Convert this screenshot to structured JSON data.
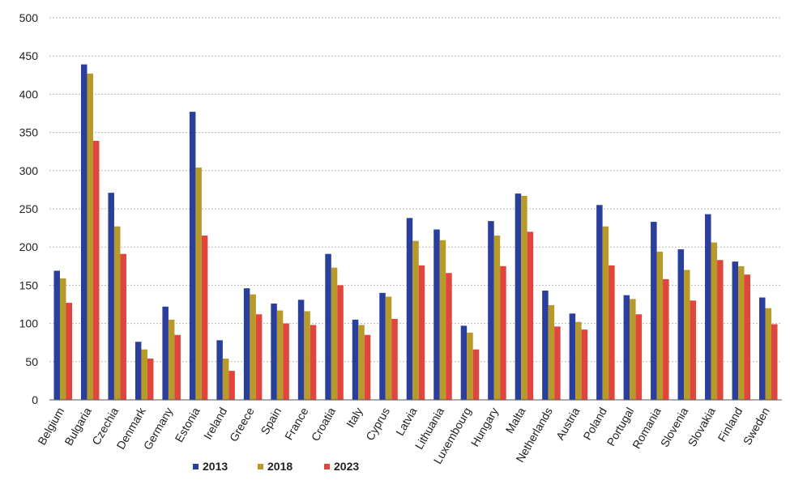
{
  "chart_data": {
    "type": "bar",
    "title": "",
    "xlabel": "",
    "ylabel": "",
    "ylim": [
      0,
      500
    ],
    "yticks": [
      0,
      50,
      100,
      150,
      200,
      250,
      300,
      350,
      400,
      450,
      500
    ],
    "grid": true,
    "legend_position": "bottom",
    "categories": [
      "Belgium",
      "Bulgaria",
      "Czechia",
      "Denmark",
      "Germany",
      "Estonia",
      "Ireland",
      "Greece",
      "Spain",
      "France",
      "Croatia",
      "Italy",
      "Cyprus",
      "Latvia",
      "Lithuania",
      "Luxembourg",
      "Hungary",
      "Malta",
      "Netherlands",
      "Austria",
      "Poland",
      "Portugal",
      "Romania",
      "Slovenia",
      "Slovakia",
      "Finland",
      "Sweden"
    ],
    "series": [
      {
        "name": "2013",
        "color": "#2a3f9c",
        "values": [
          169,
          439,
          271,
          76,
          122,
          377,
          78,
          146,
          126,
          131,
          191,
          105,
          140,
          238,
          223,
          97,
          234,
          270,
          143,
          113,
          255,
          137,
          233,
          197,
          243,
          181,
          134
        ]
      },
      {
        "name": "2018",
        "color": "#b89a2a",
        "values": [
          159,
          427,
          227,
          66,
          105,
          304,
          54,
          138,
          117,
          116,
          173,
          98,
          135,
          208,
          209,
          88,
          215,
          267,
          124,
          102,
          227,
          132,
          194,
          170,
          206,
          175,
          120
        ]
      },
      {
        "name": "2023",
        "color": "#e0453e",
        "values": [
          127,
          339,
          191,
          54,
          85,
          215,
          38,
          112,
          100,
          98,
          150,
          85,
          106,
          176,
          166,
          66,
          175,
          220,
          96,
          92,
          176,
          112,
          158,
          130,
          183,
          164,
          99
        ]
      }
    ]
  }
}
